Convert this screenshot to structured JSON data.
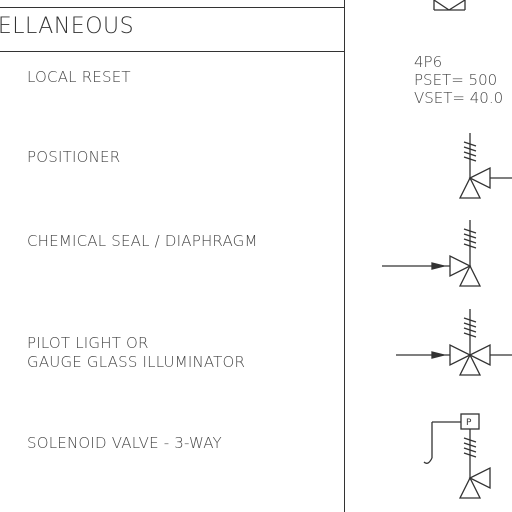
{
  "section": {
    "header": "CELLANEOUS"
  },
  "items": [
    {
      "lines": [
        "LOCAL RESET"
      ]
    },
    {
      "lines": [
        "POSITIONER"
      ]
    },
    {
      "lines": [
        "CHEMICAL SEAL / DIAPHRAGM"
      ]
    },
    {
      "lines": [
        "PILOT LIGHT OR",
        "GAUGE GLASS ILLUMINATOR"
      ]
    },
    {
      "lines": [
        "SOLENOID VALVE - 3-WAY"
      ]
    }
  ],
  "note": {
    "line1": "4P6",
    "line2": "PSET= 500",
    "line3": "VSET= 40.0"
  },
  "symbols": {
    "solenoid_label": "P"
  }
}
